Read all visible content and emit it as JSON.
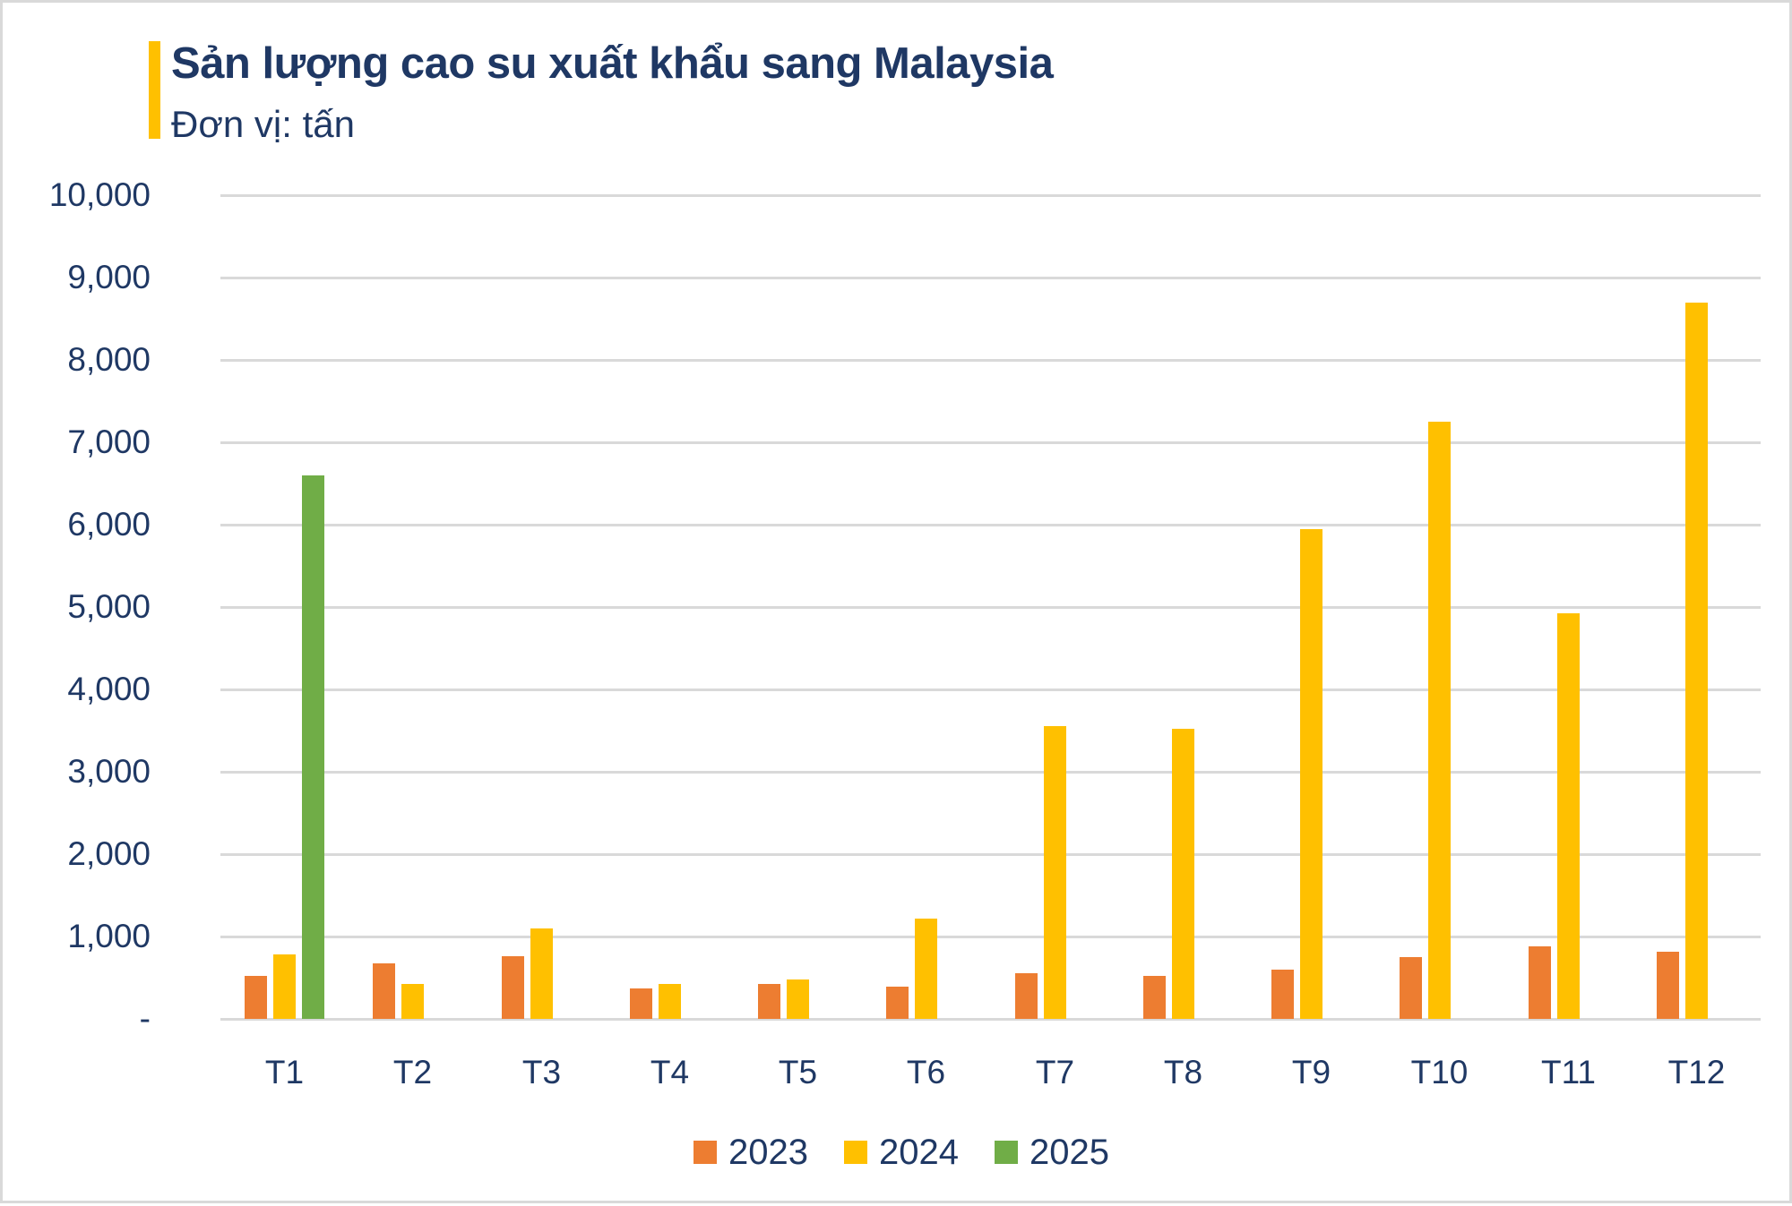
{
  "header": {
    "title": "Sản lượng cao su xuất khẩu sang Malaysia",
    "subtitle": "Đơn vị: tấn",
    "accent_color": "#ffc000",
    "text_color": "#1f3864"
  },
  "chart_data": {
    "type": "bar",
    "title": "Sản lượng cao su xuất khẩu sang Malaysia",
    "subtitle": "Đơn vị: tấn",
    "xlabel": "",
    "ylabel": "",
    "ylim": [
      0,
      10000
    ],
    "grid": true,
    "legend_position": "bottom",
    "categories": [
      "T1",
      "T2",
      "T3",
      "T4",
      "T5",
      "T6",
      "T7",
      "T8",
      "T9",
      "T10",
      "T11",
      "T12"
    ],
    "yticks": [
      "-",
      "1,000",
      "2,000",
      "3,000",
      "4,000",
      "5,000",
      "6,000",
      "7,000",
      "8,000",
      "9,000",
      "10,000"
    ],
    "series": [
      {
        "name": "2023",
        "color": "#ed7d31",
        "values": [
          520,
          670,
          760,
          370,
          420,
          390,
          550,
          520,
          600,
          750,
          880,
          820
        ]
      },
      {
        "name": "2024",
        "color": "#ffc000",
        "values": [
          780,
          420,
          1100,
          420,
          480,
          1220,
          3550,
          3520,
          5950,
          7250,
          4920,
          8700
        ]
      },
      {
        "name": "2025",
        "color": "#70ad47",
        "values": [
          6600,
          null,
          null,
          null,
          null,
          null,
          null,
          null,
          null,
          null,
          null,
          null
        ]
      }
    ]
  },
  "legend": {
    "items": [
      {
        "label": "2023",
        "color": "#ed7d31"
      },
      {
        "label": "2024",
        "color": "#ffc000"
      },
      {
        "label": "2025",
        "color": "#70ad47"
      }
    ]
  }
}
